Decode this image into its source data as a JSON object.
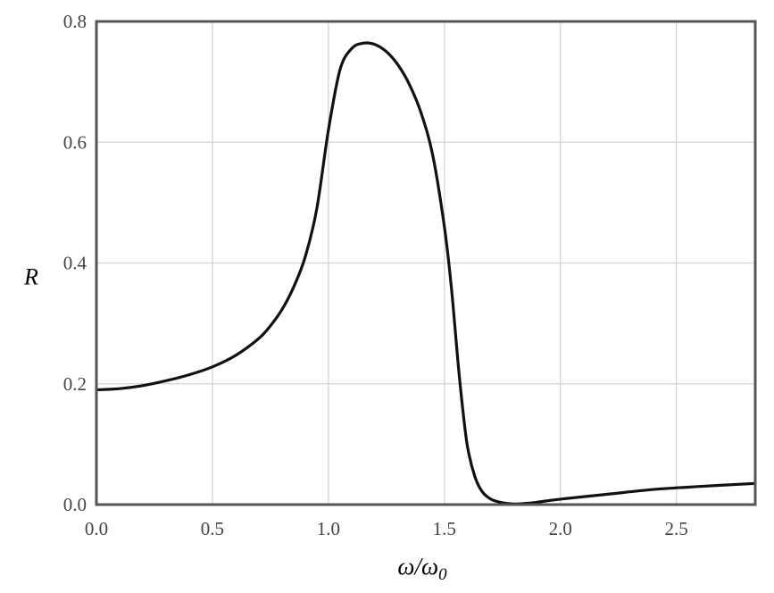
{
  "chart_data": {
    "type": "line",
    "title": "",
    "xlabel": "ω/ω",
    "xlabel_sub": "0",
    "ylabel": "R",
    "xlim": [
      0.0,
      2.84
    ],
    "ylim": [
      0.0,
      0.8
    ],
    "grid": true,
    "x_ticks": [
      "0.0",
      "0.5",
      "1.0",
      "1.5",
      "2.0",
      "2.5"
    ],
    "y_ticks": [
      "0.0",
      "0.2",
      "0.4",
      "0.6",
      "0.8"
    ],
    "series": [
      {
        "color": "#111111",
        "x": [
          0.0,
          0.1,
          0.2,
          0.3,
          0.4,
          0.5,
          0.6,
          0.7,
          0.75,
          0.8,
          0.85,
          0.9,
          0.95,
          1.0,
          1.05,
          1.1,
          1.15,
          1.2,
          1.25,
          1.3,
          1.35,
          1.4,
          1.45,
          1.5,
          1.53,
          1.56,
          1.58,
          1.6,
          1.63,
          1.66,
          1.7,
          1.75,
          1.8,
          1.85,
          1.9,
          2.0,
          2.2,
          2.4,
          2.6,
          2.84
        ],
        "y": [
          0.19,
          0.192,
          0.197,
          0.205,
          0.215,
          0.228,
          0.247,
          0.275,
          0.296,
          0.323,
          0.36,
          0.41,
          0.49,
          0.62,
          0.72,
          0.755,
          0.764,
          0.762,
          0.75,
          0.728,
          0.695,
          0.648,
          0.578,
          0.46,
          0.36,
          0.23,
          0.155,
          0.095,
          0.048,
          0.023,
          0.009,
          0.003,
          0.001,
          0.002,
          0.004,
          0.009,
          0.017,
          0.025,
          0.03,
          0.035
        ]
      }
    ]
  }
}
